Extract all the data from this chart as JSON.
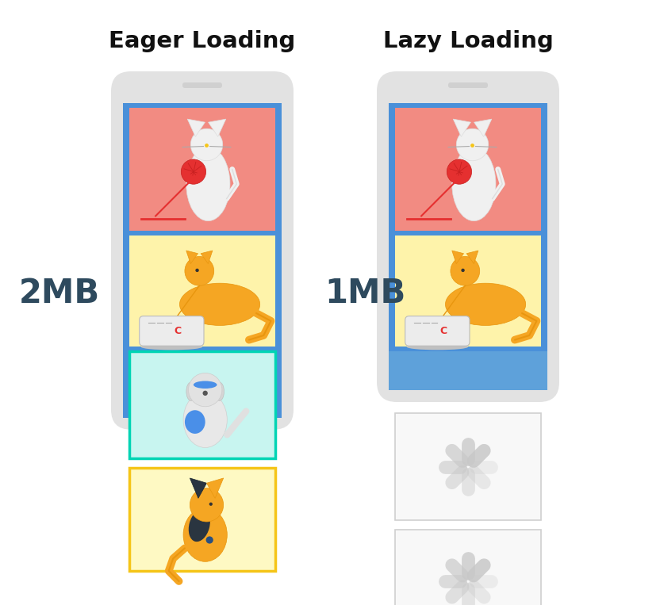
{
  "title_eager": "Eager Loading",
  "title_lazy": "Lazy Loading",
  "label_2mb": "2MB",
  "label_1mb": "1MB",
  "bg_color": "#ffffff",
  "phone_gray": "#e2e2e2",
  "phone_blue": "#4a90d9",
  "img1_bg": "#f28b82",
  "img2_bg": "#fef3aa",
  "img3_eager_bg": "#c8f5f0",
  "img3_eager_border": "#00d4b4",
  "img4_eager_bg": "#fef9c3",
  "img4_eager_border": "#f5c518",
  "spinner_color": "#c8c8c8",
  "placeholder_bg": "#f8f8f8",
  "placeholder_border": "#d0d0d0",
  "label_color": "#2e4a5e",
  "title_color": "#111111",
  "notch_color": "#d0d0d0"
}
